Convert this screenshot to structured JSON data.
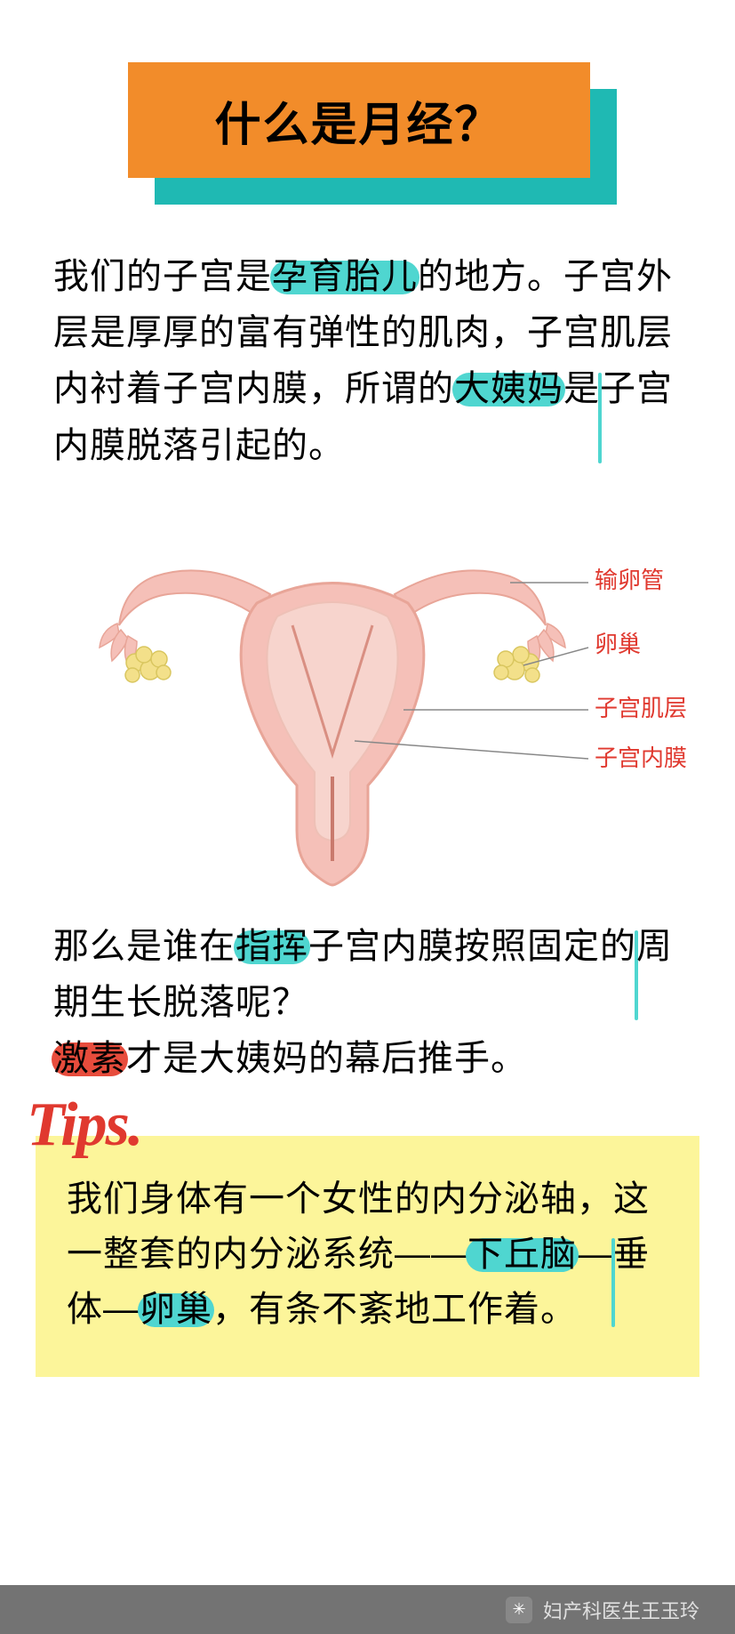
{
  "title": "什么是月经？",
  "title_style": {
    "box_color": "#f28c2a",
    "shadow_color": "#1fb9b3",
    "text_color": "#000000",
    "fontsize": 52
  },
  "para1": {
    "segments": [
      {
        "t": "我们的子宫是",
        "hl": null
      },
      {
        "t": "孕育胎儿",
        "hl": "teal"
      },
      {
        "t": "的地方。子宫外层是厚厚的富有弹性的肌肉，子宫肌层内衬着子宫内膜，所谓的",
        "hl": null
      },
      {
        "t": "大姨妈",
        "hl": "teal"
      },
      {
        "t": "是",
        "hl": null
      },
      {
        "t": "子宫内膜脱落",
        "hl": "teal"
      },
      {
        "t": "引起的。",
        "hl": null
      }
    ]
  },
  "diagram": {
    "labels": [
      "输卵管",
      "卵巢",
      "子宫肌层",
      "子宫内膜"
    ],
    "label_color": "#e0392f",
    "body_fill": "#f5c0b8",
    "body_stroke": "#e8a598",
    "inner_fill": "#f7d4cd",
    "ovary_fill": "#f3e08a",
    "line_color": "#888888"
  },
  "para2": {
    "segments": [
      {
        "t": "那么是谁在",
        "hl": null
      },
      {
        "t": "指挥",
        "hl": "teal"
      },
      {
        "t": "子宫内膜按照固定的",
        "hl": null
      },
      {
        "t": "周期生长脱落",
        "hl": "teal"
      },
      {
        "t": "呢？",
        "hl": null
      }
    ]
  },
  "para3": {
    "segments": [
      {
        "t": "激素",
        "hl": "red"
      },
      {
        "t": "才是大姨妈的幕后推手。",
        "hl": null
      }
    ]
  },
  "tips": {
    "label": "Tips.",
    "label_color": "#e0392f",
    "box_color": "#fcf59a",
    "segments": [
      {
        "t": "我们身体有一个女性的内分泌轴，这一整套的内分泌系统——",
        "hl": null
      },
      {
        "t": "下丘脑",
        "hl": "teal"
      },
      {
        "t": "—",
        "hl": null
      },
      {
        "t": "垂体",
        "hl": "teal"
      },
      {
        "t": "—",
        "hl": null
      },
      {
        "t": "卵巢",
        "hl": "teal"
      },
      {
        "t": "，有条不紊地工作着。",
        "hl": null
      }
    ]
  },
  "footer": "妇产科医生王玉玲",
  "highlight_colors": {
    "teal": "#4fd6d0",
    "red": "#e74c3c"
  },
  "body_text": {
    "fontsize": 40,
    "color": "#000000",
    "line_height": 1.58
  }
}
